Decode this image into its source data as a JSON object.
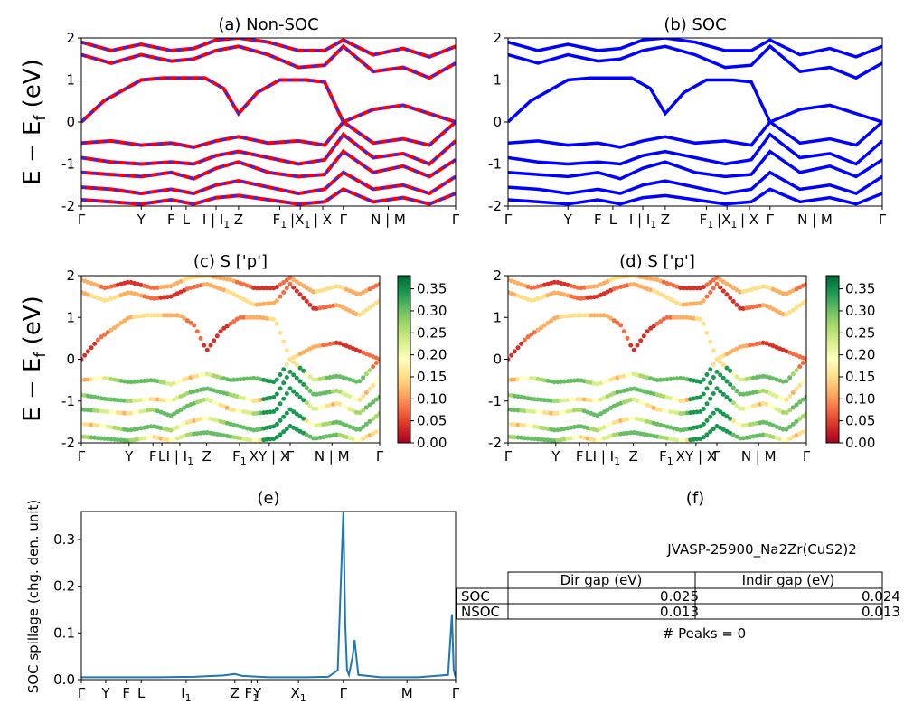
{
  "panels": {
    "a": {
      "title": "(a) Non-SOC"
    },
    "b": {
      "title": "(b) SOC"
    },
    "c": {
      "title": "(c)  S ['p']"
    },
    "d": {
      "title": "(d) S ['p']"
    },
    "e": {
      "title": "(e)"
    },
    "f": {
      "title": "(f)"
    }
  },
  "ylabel_band": "E − E",
  "ylabel_band_sub": "f",
  "ylabel_band_unit": "(eV)",
  "ylabel_spillage": "SOC spillage (chg. den. unit)",
  "colors": {
    "nonsoc_red": "#ff0000",
    "nonsoc_blue": "#2a2aff",
    "soc_blue": "#0000ff",
    "spillage_line": "#1f77b4"
  },
  "colormap": "RdYlGn",
  "colorbar_ticks": [
    "0.35",
    "0.30",
    "0.25",
    "0.20",
    "0.15",
    "0.10",
    "0.05",
    "0.00"
  ],
  "kpath_top": [
    {
      "main": "Γ",
      "sub": "",
      "pos": 0.0
    },
    {
      "main": "Y",
      "sub": "",
      "pos": 0.16
    },
    {
      "main": "F",
      "sub": "",
      "pos": 0.24
    },
    {
      "main": "L",
      "sub": "",
      "pos": 0.28
    },
    {
      "main": "I | I",
      "sub": "1",
      "pos": 0.36
    },
    {
      "main": "Z",
      "sub": "",
      "pos": 0.42
    },
    {
      "main": "F",
      "sub": "1",
      "pos": 0.53
    },
    {
      "main": "|X",
      "sub": "1",
      "pos": 0.585
    },
    {
      "main": "| X",
      "sub": "",
      "pos": 0.645
    },
    {
      "main": "Γ",
      "sub": "",
      "pos": 0.7
    },
    {
      "main": "N | M",
      "sub": "",
      "pos": 0.82
    },
    {
      "main": "Γ",
      "sub": "",
      "pos": 1.0
    }
  ],
  "kpath_mid": [
    {
      "main": "Γ",
      "sub": "",
      "pos": 0.0
    },
    {
      "main": "Y",
      "sub": "",
      "pos": 0.16
    },
    {
      "main": "F",
      "sub": "",
      "pos": 0.24
    },
    {
      "main": "L",
      "sub": "",
      "pos": 0.27
    },
    {
      "main": "I | I",
      "sub": "1",
      "pos": 0.33
    },
    {
      "main": "Z",
      "sub": "",
      "pos": 0.42
    },
    {
      "main": "F",
      "sub": "1",
      "pos": 0.53
    },
    {
      "main": "XY | X",
      "sub": "",
      "pos": 0.63
    },
    {
      "main": "Γ",
      "sub": "",
      "pos": 0.7
    },
    {
      "main": "N | M",
      "sub": "",
      "pos": 0.84
    },
    {
      "main": "Γ",
      "sub": "",
      "pos": 1.0
    }
  ],
  "kpath_mid_d": [
    {
      "main": "Γ",
      "sub": "",
      "pos": 0.0
    },
    {
      "main": "Y",
      "sub": "",
      "pos": 0.16
    },
    {
      "main": "F",
      "sub": "",
      "pos": 0.24
    },
    {
      "main": "L",
      "sub": "",
      "pos": 0.27
    },
    {
      "main": "I | I",
      "sub": "1",
      "pos": 0.33
    },
    {
      "main": "Z",
      "sub": "",
      "pos": 0.42
    },
    {
      "main": "F",
      "sub": "1",
      "pos": 0.53
    },
    {
      "main": "XY | X",
      "sub": "",
      "pos": 0.63
    },
    {
      "main": "Γ",
      "sub": "",
      "pos": 0.7
    },
    {
      "main": "N | M",
      "sub": "",
      "pos": 0.84
    },
    {
      "main": "Γ",
      "sub": "",
      "pos": 1.0
    }
  ],
  "kpath_bottom": [
    {
      "main": "Γ",
      "sub": "",
      "pos": 0.0
    },
    {
      "main": "Y",
      "sub": "",
      "pos": 0.065
    },
    {
      "main": "F",
      "sub": "",
      "pos": 0.12
    },
    {
      "main": "L",
      "sub": "",
      "pos": 0.16
    },
    {
      "main": "I",
      "sub": "1",
      "pos": 0.28
    },
    {
      "main": "Z",
      "sub": "",
      "pos": 0.41
    },
    {
      "main": "F",
      "sub": "1",
      "pos": 0.455
    },
    {
      "main": "Y",
      "sub": "",
      "pos": 0.47
    },
    {
      "main": "X",
      "sub": "1",
      "pos": 0.58
    },
    {
      "main": "Γ",
      "sub": "",
      "pos": 0.7
    },
    {
      "main": "M",
      "sub": "",
      "pos": 0.87
    },
    {
      "main": "Γ",
      "sub": "",
      "pos": 1.0
    }
  ],
  "table": {
    "title": "JVASP-25900_Na2Zr(CuS2)2",
    "columns": [
      "Dir gap (eV)",
      "Indir gap (eV)"
    ],
    "rows": [
      {
        "label": "SOC",
        "dir": "0.025",
        "indir": "0.024"
      },
      {
        "label": "NSOC",
        "dir": "0.013",
        "indir": "0.013"
      }
    ],
    "peaks": "# Peaks = 0"
  },
  "chart_data": [
    {
      "type": "line",
      "title": "(a) Non-SOC",
      "ylabel": "E − E_f (eV)",
      "ylim": [
        -2,
        2
      ],
      "yticks": [
        -2,
        -1,
        0,
        1,
        2
      ],
      "series": [
        {
          "values": [
            [
              0,
              0
            ],
            [
              0.06,
              0.5
            ],
            [
              0.16,
              1.0
            ],
            [
              0.22,
              1.05
            ],
            [
              0.33,
              1.05
            ],
            [
              0.38,
              0.8
            ],
            [
              0.42,
              0.2
            ],
            [
              0.47,
              0.7
            ],
            [
              0.53,
              1.0
            ],
            [
              0.6,
              1.0
            ],
            [
              0.65,
              0.95
            ],
            [
              0.7,
              0.0
            ],
            [
              0.78,
              0.3
            ],
            [
              0.86,
              0.4
            ],
            [
              0.93,
              0.2
            ],
            [
              1,
              0
            ]
          ]
        },
        {
          "values": [
            [
              0,
              1.6
            ],
            [
              0.08,
              1.4
            ],
            [
              0.16,
              1.6
            ],
            [
              0.24,
              1.45
            ],
            [
              0.3,
              1.5
            ],
            [
              0.36,
              1.7
            ],
            [
              0.42,
              1.8
            ],
            [
              0.5,
              1.6
            ],
            [
              0.58,
              1.3
            ],
            [
              0.65,
              1.35
            ],
            [
              0.7,
              1.8
            ],
            [
              0.78,
              1.2
            ],
            [
              0.86,
              1.3
            ],
            [
              0.93,
              1.05
            ],
            [
              1,
              1.4
            ]
          ]
        },
        {
          "values": [
            [
              0,
              1.9
            ],
            [
              0.08,
              1.7
            ],
            [
              0.16,
              1.85
            ],
            [
              0.24,
              1.7
            ],
            [
              0.3,
              1.75
            ],
            [
              0.36,
              1.95
            ],
            [
              0.42,
              2.0
            ],
            [
              0.5,
              1.9
            ],
            [
              0.58,
              1.7
            ],
            [
              0.65,
              1.7
            ],
            [
              0.7,
              1.95
            ],
            [
              0.78,
              1.6
            ],
            [
              0.86,
              1.75
            ],
            [
              0.93,
              1.55
            ],
            [
              1,
              1.8
            ]
          ]
        },
        {
          "values": [
            [
              0,
              -0.5
            ],
            [
              0.08,
              -0.45
            ],
            [
              0.16,
              -0.55
            ],
            [
              0.24,
              -0.5
            ],
            [
              0.3,
              -0.6
            ],
            [
              0.36,
              -0.45
            ],
            [
              0.42,
              -0.35
            ],
            [
              0.5,
              -0.5
            ],
            [
              0.58,
              -0.45
            ],
            [
              0.65,
              -0.55
            ],
            [
              0.7,
              0.0
            ],
            [
              0.78,
              -0.5
            ],
            [
              0.86,
              -0.4
            ],
            [
              0.93,
              -0.55
            ],
            [
              1,
              0
            ]
          ]
        },
        {
          "values": [
            [
              0,
              -0.85
            ],
            [
              0.08,
              -0.95
            ],
            [
              0.16,
              -1.0
            ],
            [
              0.24,
              -0.95
            ],
            [
              0.3,
              -1.0
            ],
            [
              0.36,
              -0.8
            ],
            [
              0.42,
              -0.7
            ],
            [
              0.5,
              -0.85
            ],
            [
              0.58,
              -1.0
            ],
            [
              0.65,
              -0.9
            ],
            [
              0.7,
              -0.3
            ],
            [
              0.78,
              -0.85
            ],
            [
              0.86,
              -0.75
            ],
            [
              0.93,
              -1.0
            ],
            [
              1,
              -0.45
            ]
          ]
        },
        {
          "values": [
            [
              0,
              -1.2
            ],
            [
              0.08,
              -1.25
            ],
            [
              0.16,
              -1.3
            ],
            [
              0.24,
              -1.2
            ],
            [
              0.3,
              -1.35
            ],
            [
              0.36,
              -1.1
            ],
            [
              0.42,
              -0.95
            ],
            [
              0.5,
              -1.2
            ],
            [
              0.58,
              -1.3
            ],
            [
              0.65,
              -1.25
            ],
            [
              0.7,
              -0.7
            ],
            [
              0.78,
              -1.2
            ],
            [
              0.86,
              -1.05
            ],
            [
              0.93,
              -1.3
            ],
            [
              1,
              -0.9
            ]
          ]
        },
        {
          "values": [
            [
              0,
              -1.55
            ],
            [
              0.08,
              -1.6
            ],
            [
              0.16,
              -1.7
            ],
            [
              0.24,
              -1.6
            ],
            [
              0.3,
              -1.7
            ],
            [
              0.36,
              -1.5
            ],
            [
              0.42,
              -1.4
            ],
            [
              0.5,
              -1.55
            ],
            [
              0.58,
              -1.7
            ],
            [
              0.65,
              -1.6
            ],
            [
              0.7,
              -1.2
            ],
            [
              0.78,
              -1.6
            ],
            [
              0.86,
              -1.5
            ],
            [
              0.93,
              -1.7
            ],
            [
              1,
              -1.3
            ]
          ]
        },
        {
          "values": [
            [
              0,
              -1.85
            ],
            [
              0.08,
              -1.9
            ],
            [
              0.16,
              -1.95
            ],
            [
              0.24,
              -1.85
            ],
            [
              0.3,
              -1.95
            ],
            [
              0.36,
              -1.8
            ],
            [
              0.42,
              -1.75
            ],
            [
              0.5,
              -1.85
            ],
            [
              0.58,
              -1.95
            ],
            [
              0.65,
              -1.9
            ],
            [
              0.7,
              -1.6
            ],
            [
              0.78,
              -1.9
            ],
            [
              0.86,
              -1.8
            ],
            [
              0.93,
              -1.95
            ],
            [
              1,
              -1.7
            ]
          ]
        }
      ]
    },
    {
      "type": "line",
      "title": "(b) SOC",
      "ylim": [
        -2,
        2
      ],
      "yticks": [
        -2,
        -1,
        0,
        1,
        2
      ],
      "series_ref": "same band shape as (a)"
    },
    {
      "type": "scatter",
      "title": "(c)  S ['p']",
      "ylim": [
        -2,
        2
      ],
      "yticks": [
        -2,
        -1,
        0,
        1,
        2
      ],
      "colorbar": {
        "min": 0.0,
        "max": 0.38,
        "cmap": "RdYlGn"
      }
    },
    {
      "type": "scatter",
      "title": "(d) S ['p']",
      "ylim": [
        -2,
        2
      ],
      "yticks": [
        -2,
        -1,
        0,
        1,
        2
      ],
      "colorbar": {
        "min": 0.0,
        "max": 0.38,
        "cmap": "RdYlGn"
      }
    },
    {
      "type": "line",
      "title": "(e)",
      "ylabel": "SOC spillage (chg. den. unit)",
      "ylim": [
        0,
        0.36
      ],
      "yticks": [
        0.0,
        0.1,
        0.2,
        0.3
      ],
      "x": [
        0.0,
        0.1,
        0.2,
        0.3,
        0.38,
        0.41,
        0.43,
        0.5,
        0.6,
        0.66,
        0.685,
        0.7,
        0.705,
        0.71,
        0.715,
        0.725,
        0.73,
        0.74,
        0.8,
        0.9,
        0.98,
        0.99,
        0.995,
        1.0
      ],
      "values": [
        0.005,
        0.005,
        0.005,
        0.006,
        0.009,
        0.012,
        0.008,
        0.005,
        0.005,
        0.006,
        0.02,
        0.36,
        0.12,
        0.02,
        0.01,
        0.05,
        0.085,
        0.01,
        0.005,
        0.005,
        0.01,
        0.14,
        0.02,
        0.005
      ]
    }
  ]
}
